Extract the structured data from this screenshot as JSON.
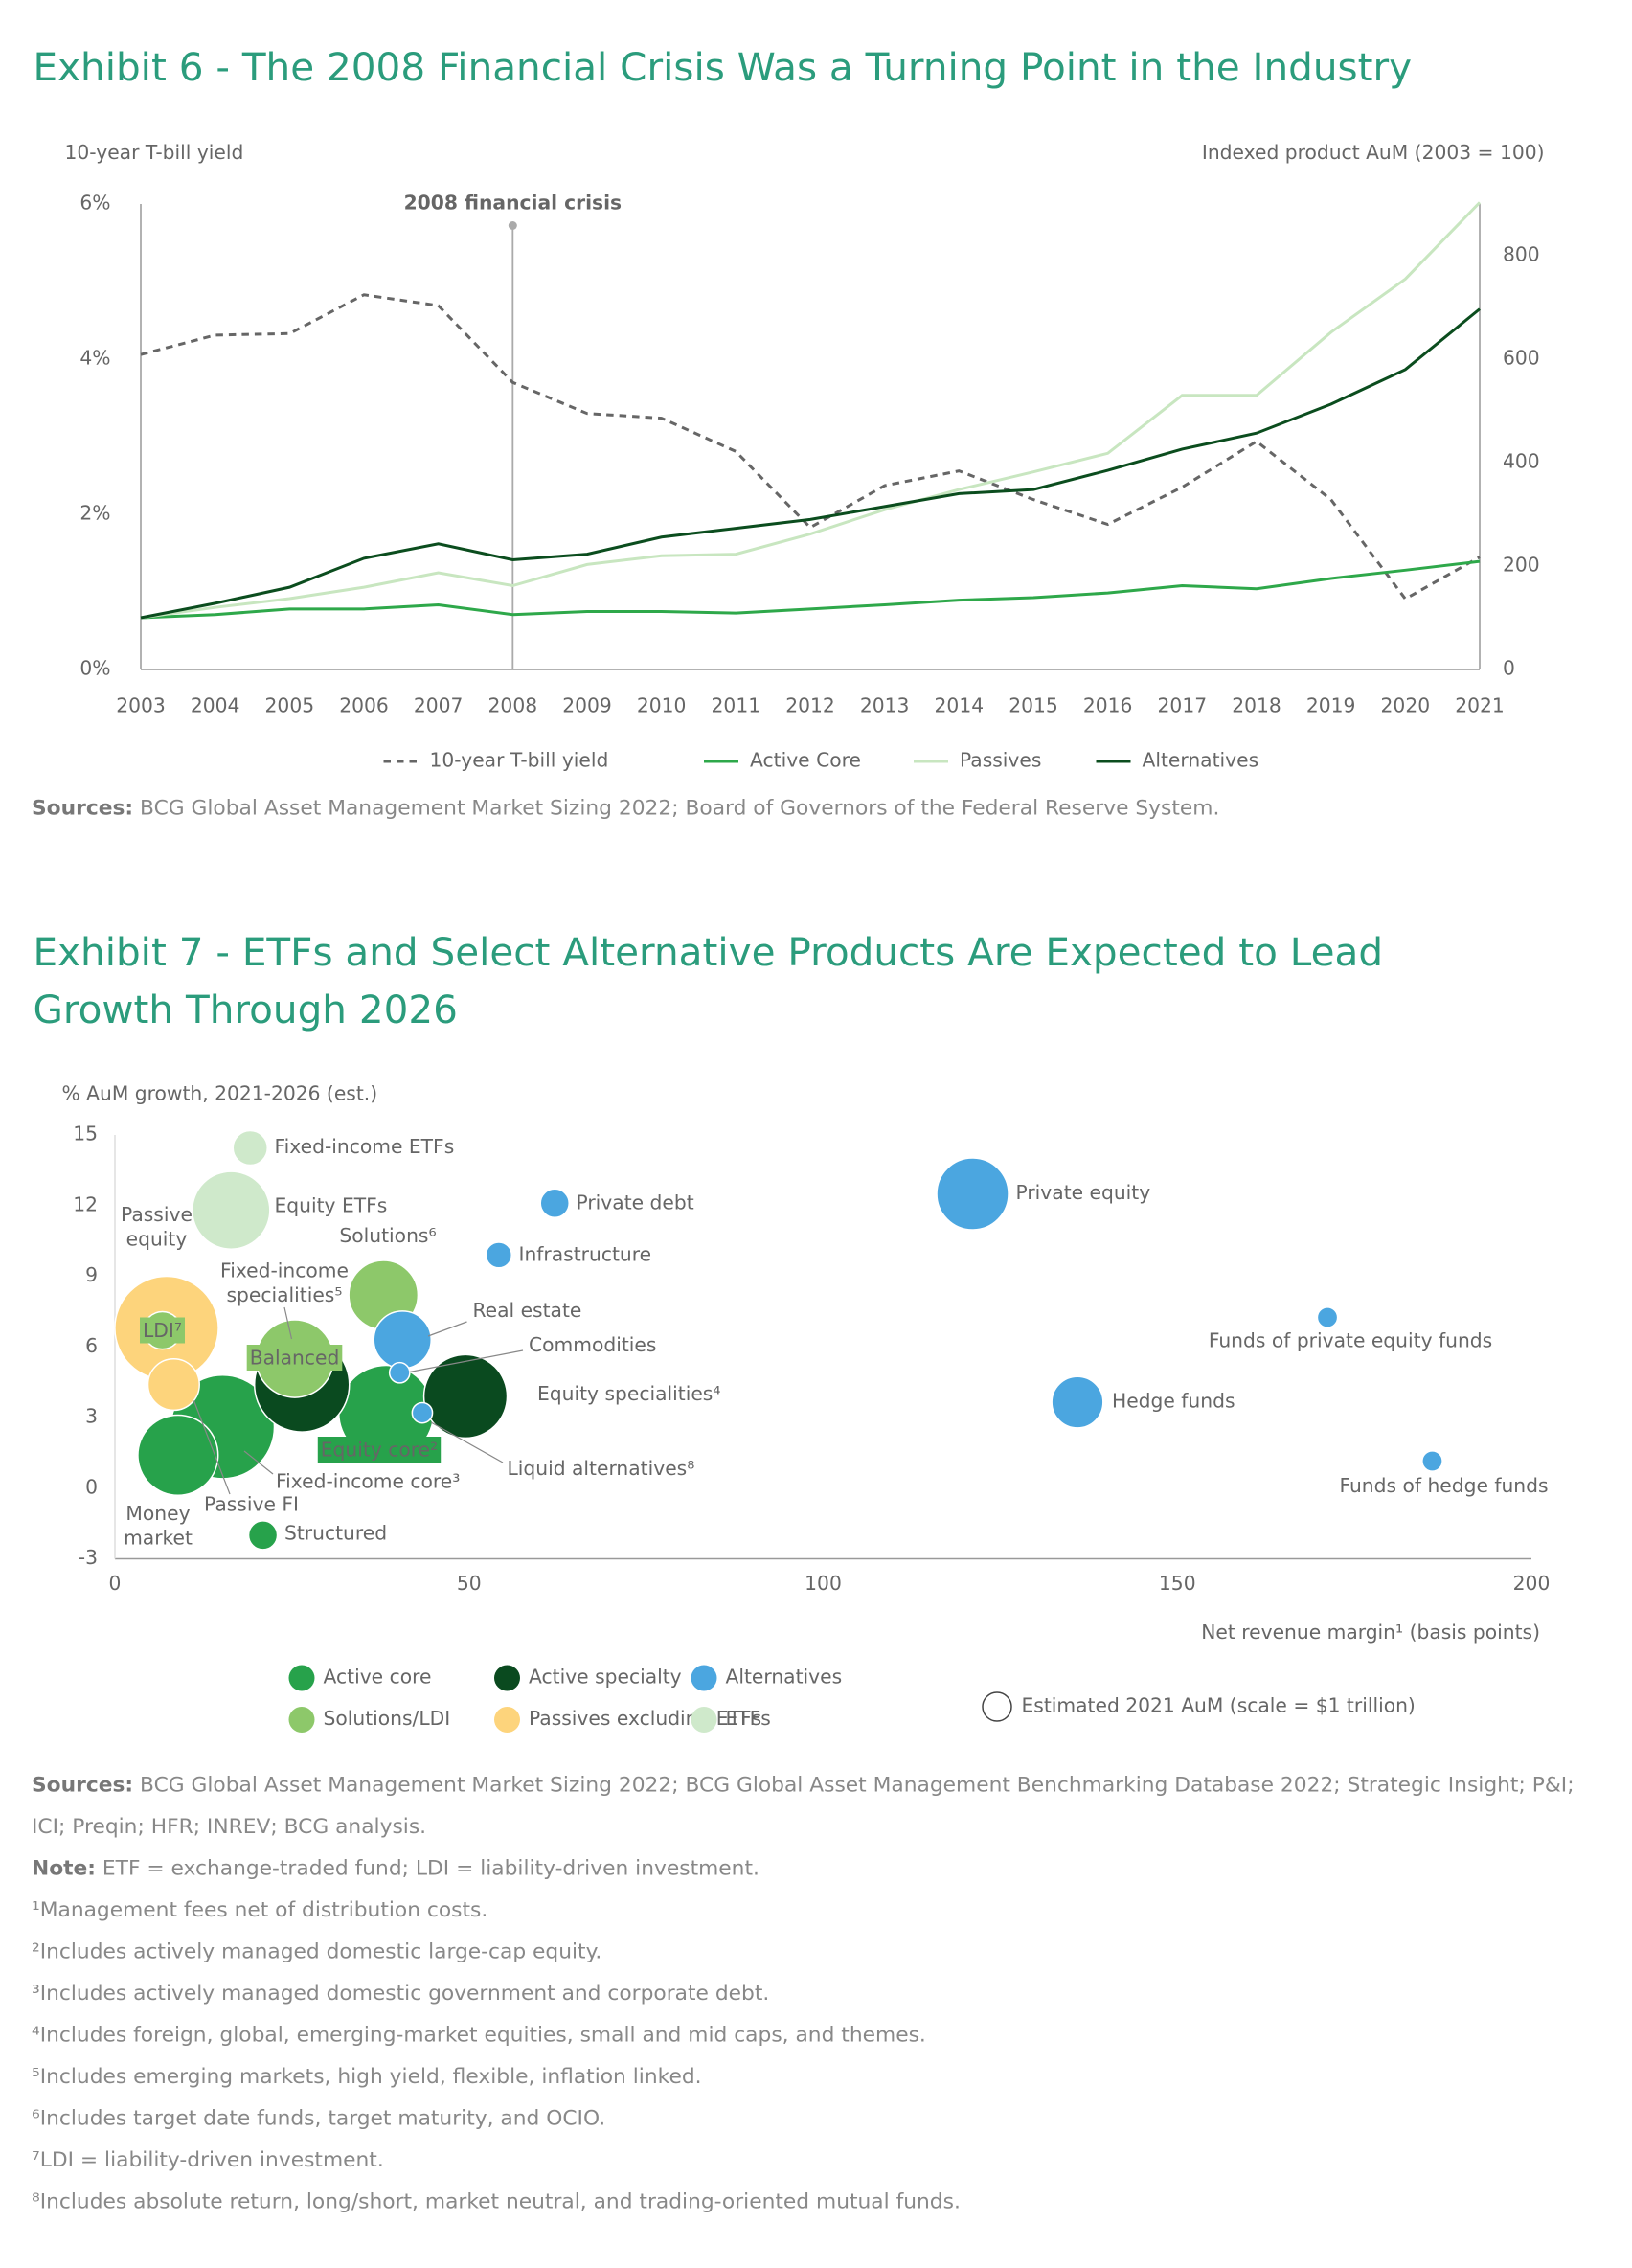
{
  "chart_data": [
    {
      "type": "line",
      "title": "Exhibit 6 - The 2008 Financial Crisis Was a Turning Point in the Industry",
      "y_label": "10-year T-bill yield",
      "y2_label": "Indexed product AuM (2003 = 100)",
      "annotation": {
        "label": "2008 financial crisis",
        "x": 2008
      },
      "x": [
        2003,
        2004,
        2005,
        2006,
        2007,
        2008,
        2009,
        2010,
        2011,
        2012,
        2013,
        2014,
        2015,
        2016,
        2017,
        2018,
        2019,
        2020,
        2021
      ],
      "xlim": [
        2003,
        2021
      ],
      "xticks": [
        2003,
        2004,
        2005,
        2006,
        2007,
        2008,
        2009,
        2010,
        2011,
        2012,
        2013,
        2014,
        2015,
        2016,
        2017,
        2018,
        2019,
        2020,
        2021
      ],
      "ylim": [
        0,
        6
      ],
      "yticks": [
        {
          "value": 0,
          "label": "0%"
        },
        {
          "value": 2,
          "label": "2%"
        },
        {
          "value": 4,
          "label": "4%"
        },
        {
          "value": 6,
          "label": "6%"
        }
      ],
      "y2lim": [
        0,
        900
      ],
      "y2ticks": [
        0,
        200,
        400,
        600,
        800
      ],
      "series": [
        {
          "name": "10-year T-bill yield",
          "color": "#666666",
          "style": "dashed",
          "axis": "y",
          "values": [
            4.06,
            4.31,
            4.33,
            4.83,
            4.69,
            3.7,
            3.3,
            3.24,
            2.81,
            1.83,
            2.37,
            2.56,
            2.19,
            1.87,
            2.35,
            2.94,
            2.19,
            0.91,
            1.45
          ]
        },
        {
          "name": "Active Core",
          "color": "#2ea84a",
          "style": "solid",
          "axis": "y2",
          "values": [
            100,
            106,
            117,
            117,
            125,
            106,
            112,
            112,
            109,
            117,
            125,
            134,
            139,
            148,
            162,
            156,
            176,
            192,
            209
          ]
        },
        {
          "name": "Passives",
          "color": "#c8e6c0",
          "style": "solid",
          "axis": "y2",
          "values": [
            100,
            120,
            137,
            159,
            187,
            162,
            203,
            220,
            223,
            262,
            309,
            348,
            382,
            418,
            530,
            530,
            652,
            755,
            903
          ]
        },
        {
          "name": "Alternatives",
          "color": "#0b4d1e",
          "style": "solid",
          "axis": "y2",
          "values": [
            100,
            128,
            159,
            215,
            243,
            212,
            223,
            256,
            273,
            290,
            315,
            340,
            348,
            385,
            426,
            457,
            513,
            580,
            697
          ]
        }
      ],
      "source": {
        "label": "Sources:",
        "text": "BCG Global Asset Management Market Sizing 2022; Board of Governors of the Federal Reserve System."
      }
    },
    {
      "type": "bubble",
      "title": "Exhibit 7 - ETFs and Select Alternative Products Are Expected to Lead Growth Through 2026",
      "y_label": "% AuM growth, 2021-2026 (est.)",
      "x_label": "Net revenue margin¹ (basis points)",
      "xlim": [
        0,
        200
      ],
      "xticks": [
        0,
        50,
        100,
        150,
        200
      ],
      "ylim": [
        -3,
        15
      ],
      "yticks": [
        -3,
        0,
        3,
        6,
        9,
        12,
        15
      ],
      "size_legend": {
        "label": "Estimated 2021 AuM (scale = $1 trillion)",
        "value": 1
      },
      "series": [
        {
          "name": "Active core",
          "color": "#27a24b",
          "labels": [
            "Equity core²",
            "Fixed-income core³",
            "Money market",
            "Structured"
          ],
          "x": [
            38.3,
            15.2,
            8.9,
            20.9
          ],
          "values": [
            3.2,
            2.6,
            1.4,
            -2.0
          ],
          "sizes": [
            10.9,
            13,
            7.8,
            1.0
          ]
        },
        {
          "name": "Active specialty",
          "color": "#0a4a1f",
          "labels": [
            "Fixed-income specialities⁵",
            "Equity specialities⁴"
          ],
          "x": [
            26.4,
            49.5
          ],
          "values": [
            4.4,
            3.9
          ],
          "sizes": [
            10.9,
            8.4
          ]
        },
        {
          "name": "Alternatives",
          "color": "#4ba6e0",
          "labels": [
            "Private debt",
            "Private equity",
            "Infrastructure",
            "Real estate",
            "Commodities",
            "Liquid alternatives⁸",
            "Funds of private equity funds",
            "Hedge funds",
            "Funds of hedge funds"
          ],
          "x": [
            62.1,
            121.1,
            54.2,
            40.6,
            40.2,
            43.4,
            171.2,
            135.9,
            186
          ],
          "values": [
            12.1,
            12.5,
            9.9,
            6.3,
            4.9,
            3.2,
            7.25,
            3.65,
            1.15
          ],
          "sizes": [
            1.0,
            6.25,
            0.8,
            4,
            0.5,
            0.5,
            0.5,
            3.2,
            0.5
          ]
        },
        {
          "name": "Solutions/LDI",
          "color": "#8dc86a",
          "labels": [
            "Solutions⁶",
            "LDI⁷",
            "Balanced"
          ],
          "x": [
            37.9,
            6.7,
            25.4
          ],
          "values": [
            8.2,
            6.7,
            5.5
          ],
          "sizes": [
            5.8,
            1.7,
            7.3
          ]
        },
        {
          "name": "Passives excluding ETFs",
          "color": "#fdd47c",
          "labels": [
            "Passive equity",
            "Passive FI"
          ],
          "x": [
            7.3,
            8.3
          ],
          "values": [
            6.8,
            4.4
          ],
          "sizes": [
            13,
            3.2
          ]
        },
        {
          "name": "ETFs",
          "color": "#cfe9cb",
          "labels": [
            "Fixed-income ETFs",
            "Equity ETFs"
          ],
          "x": [
            19.1,
            16.4
          ],
          "values": [
            14.45,
            11.8
          ],
          "sizes": [
            1.44,
            7.3
          ]
        }
      ],
      "source": {
        "label": "Sources:",
        "text": "BCG Global Asset Management Market Sizing 2022; BCG Global Asset Management Benchmarking Database 2022; Strategic Insight; P&I; ICI; Preqin; HFR; INREV; BCG analysis."
      }
    }
  ],
  "notes": {
    "note": {
      "label": "Note:",
      "text": "ETF = exchange-traded fund; LDI = liability-driven investment."
    },
    "footnotes": [
      "¹Management fees net of distribution costs.",
      "²Includes actively managed domestic large-cap equity.",
      "³Includes actively managed domestic government and corporate debt.",
      "⁴Includes foreign, global, emerging-market equities, small and mid caps, and themes.",
      "⁵Includes emerging markets, high yield, flexible, inflation linked.",
      "⁶Includes target date funds, target maturity, and OCIO.",
      "⁷LDI = liability-driven investment.",
      "⁸Includes absolute return, long/short, market neutral, and trading-oriented mutual funds."
    ]
  }
}
